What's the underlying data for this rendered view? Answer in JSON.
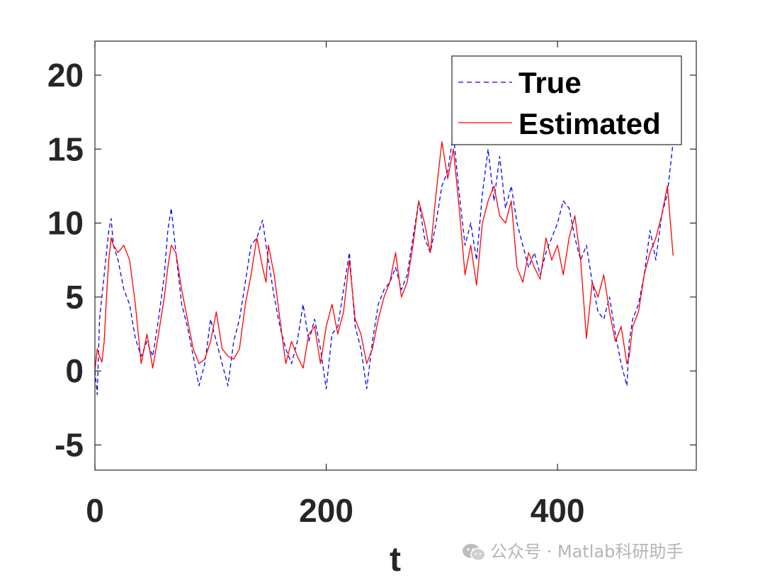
{
  "chart_data": {
    "type": "line",
    "title": "",
    "xlabel": "t",
    "ylabel": "",
    "xlim": [
      0,
      520
    ],
    "ylim": [
      -6.7,
      22.3
    ],
    "xticks": [
      0,
      200,
      400
    ],
    "yticks": [
      -5,
      0,
      5,
      10,
      15,
      20
    ],
    "xtick_labels": [
      "0",
      "200",
      "400"
    ],
    "ytick_labels": [
      "-5",
      "0",
      "5",
      "10",
      "15",
      "20"
    ],
    "grid": false,
    "legend_position": "top-right",
    "colors": {
      "True": "#0000ff",
      "Estimated": "#ff0000",
      "axis": "#262626"
    },
    "series": [
      {
        "name": "True",
        "style": "dashed",
        "x": [
          0,
          2,
          4,
          6,
          8,
          10,
          12,
          14,
          16,
          20,
          25,
          30,
          35,
          40,
          45,
          50,
          55,
          60,
          63,
          66,
          70,
          75,
          80,
          85,
          90,
          95,
          100,
          105,
          110,
          115,
          120,
          125,
          130,
          135,
          140,
          145,
          148,
          150,
          155,
          160,
          165,
          170,
          175,
          180,
          185,
          190,
          195,
          200,
          205,
          210,
          215,
          220,
          225,
          230,
          235,
          240,
          245,
          250,
          255,
          260,
          265,
          270,
          275,
          280,
          285,
          290,
          295,
          300,
          305,
          310,
          315,
          320,
          325,
          330,
          335,
          340,
          345,
          350,
          355,
          360,
          365,
          370,
          375,
          380,
          385,
          390,
          395,
          400,
          405,
          410,
          415,
          420,
          425,
          430,
          435,
          440,
          445,
          450,
          455,
          460,
          462,
          465,
          470,
          475,
          480,
          485,
          490,
          495,
          500
        ],
        "y": [
          0,
          -1.6,
          3.5,
          5.0,
          6.5,
          8.0,
          9.5,
          10.3,
          8.5,
          7.5,
          5.5,
          4.5,
          2.2,
          1.0,
          2.0,
          1.0,
          3.5,
          6.5,
          9.5,
          11.0,
          8.0,
          4.5,
          3.0,
          1.0,
          -1.0,
          0.5,
          3.5,
          2.0,
          0.5,
          -1.0,
          2.0,
          3.5,
          6.0,
          8.5,
          9.0,
          10.2,
          8.5,
          7.5,
          5.0,
          3.0,
          1.5,
          0.5,
          2.0,
          4.5,
          2.0,
          3.5,
          1.5,
          -1.2,
          2.5,
          3.0,
          5.5,
          8.0,
          3.0,
          1.5,
          -1.2,
          2.0,
          4.5,
          5.5,
          6.0,
          7.0,
          5.5,
          6.5,
          9.0,
          11.5,
          9.0,
          8.0,
          10.0,
          12.5,
          13.5,
          16.0,
          12.0,
          8.5,
          10.0,
          7.5,
          12.0,
          15.0,
          11.5,
          14.5,
          11.0,
          12.5,
          10.0,
          8.5,
          7.0,
          8.0,
          6.5,
          8.0,
          9.0,
          10.0,
          11.5,
          11.0,
          9.0,
          7.5,
          8.5,
          6.0,
          4.0,
          3.5,
          5.0,
          2.5,
          0.5,
          -1.0,
          2.0,
          3.5,
          4.5,
          6.5,
          9.5,
          7.5,
          10.5,
          12.0,
          15.5
        ]
      },
      {
        "name": "Estimated",
        "style": "solid",
        "x": [
          0,
          2,
          4,
          6,
          8,
          10,
          12,
          14,
          16,
          20,
          25,
          30,
          35,
          40,
          45,
          50,
          55,
          60,
          63,
          66,
          70,
          75,
          80,
          85,
          90,
          95,
          100,
          105,
          110,
          115,
          120,
          125,
          130,
          135,
          140,
          145,
          148,
          150,
          155,
          160,
          165,
          170,
          175,
          180,
          185,
          190,
          195,
          200,
          205,
          210,
          215,
          220,
          225,
          230,
          235,
          240,
          245,
          250,
          255,
          260,
          265,
          270,
          275,
          280,
          285,
          290,
          295,
          300,
          305,
          310,
          315,
          320,
          325,
          330,
          335,
          340,
          345,
          350,
          355,
          360,
          365,
          370,
          375,
          380,
          385,
          390,
          395,
          400,
          405,
          410,
          415,
          420,
          425,
          430,
          435,
          440,
          445,
          450,
          455,
          460,
          462,
          465,
          470,
          475,
          480,
          485,
          490,
          495,
          500
        ],
        "y": [
          0,
          1.5,
          1.0,
          0.6,
          2.0,
          5.0,
          7.5,
          9.0,
          8.5,
          8.0,
          8.5,
          7.5,
          4.5,
          0.5,
          2.5,
          0.2,
          2.5,
          5.0,
          7.0,
          8.5,
          8.0,
          5.5,
          3.5,
          1.5,
          0.5,
          0.8,
          2.0,
          4.0,
          1.5,
          1.0,
          0.8,
          1.5,
          4.5,
          6.5,
          9.0,
          7.0,
          6.0,
          8.5,
          6.5,
          3.5,
          0.5,
          2.0,
          1.0,
          0.2,
          2.5,
          3.0,
          0.5,
          3.0,
          4.5,
          2.5,
          4.0,
          7.5,
          3.5,
          2.5,
          0.5,
          1.5,
          3.5,
          5.0,
          6.0,
          8.0,
          5.0,
          6.0,
          8.5,
          11.5,
          10.0,
          8.0,
          12.0,
          15.5,
          13.0,
          15.0,
          11.0,
          6.5,
          8.5,
          5.8,
          10.0,
          11.5,
          12.5,
          10.5,
          10.0,
          11.5,
          7.0,
          6.0,
          8.0,
          7.0,
          6.2,
          9.0,
          7.5,
          8.5,
          6.5,
          9.0,
          10.5,
          7.5,
          2.2,
          6.0,
          5.0,
          6.5,
          4.0,
          2.0,
          3.0,
          0.5,
          1.0,
          3.0,
          4.0,
          6.5,
          8.0,
          9.0,
          10.5,
          12.5,
          7.8
        ]
      }
    ]
  },
  "watermark": {
    "text": "公众号 · Matlab科研助手"
  }
}
